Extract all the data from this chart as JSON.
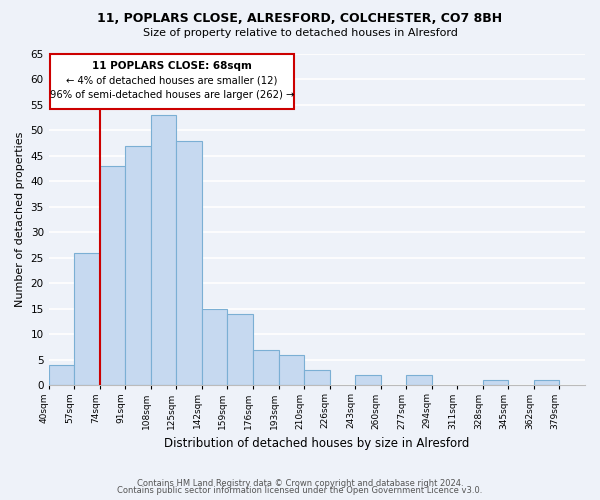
{
  "title": "11, POPLARS CLOSE, ALRESFORD, COLCHESTER, CO7 8BH",
  "subtitle": "Size of property relative to detached houses in Alresford",
  "xlabel": "Distribution of detached houses by size in Alresford",
  "ylabel": "Number of detached properties",
  "bar_color": "#c6d9f0",
  "bar_edge_color": "#7bafd4",
  "background_color": "#eef2f9",
  "grid_color": "#ffffff",
  "tick_labels": [
    "40sqm",
    "57sqm",
    "74sqm",
    "91sqm",
    "108sqm",
    "125sqm",
    "142sqm",
    "159sqm",
    "176sqm",
    "193sqm",
    "210sqm",
    "226sqm",
    "243sqm",
    "260sqm",
    "277sqm",
    "294sqm",
    "311sqm",
    "328sqm",
    "345sqm",
    "362sqm",
    "379sqm"
  ],
  "values": [
    4,
    26,
    43,
    47,
    53,
    48,
    15,
    14,
    7,
    6,
    3,
    0,
    2,
    0,
    2,
    0,
    0,
    1,
    0,
    1,
    0
  ],
  "ylim": [
    0,
    65
  ],
  "yticks": [
    0,
    5,
    10,
    15,
    20,
    25,
    30,
    35,
    40,
    45,
    50,
    55,
    60,
    65
  ],
  "property_line_bin_index": 2,
  "property_label": "11 POPLARS CLOSE: 68sqm",
  "annotation_line1": "← 4% of detached houses are smaller (12)",
  "annotation_line2": "96% of semi-detached houses are larger (262) →",
  "annotation_box_color": "#ffffff",
  "annotation_box_edge_color": "#cc0000",
  "property_line_color": "#cc0000",
  "footer_line1": "Contains HM Land Registry data © Crown copyright and database right 2024.",
  "footer_line2": "Contains public sector information licensed under the Open Government Licence v3.0.",
  "n_bins": 21
}
